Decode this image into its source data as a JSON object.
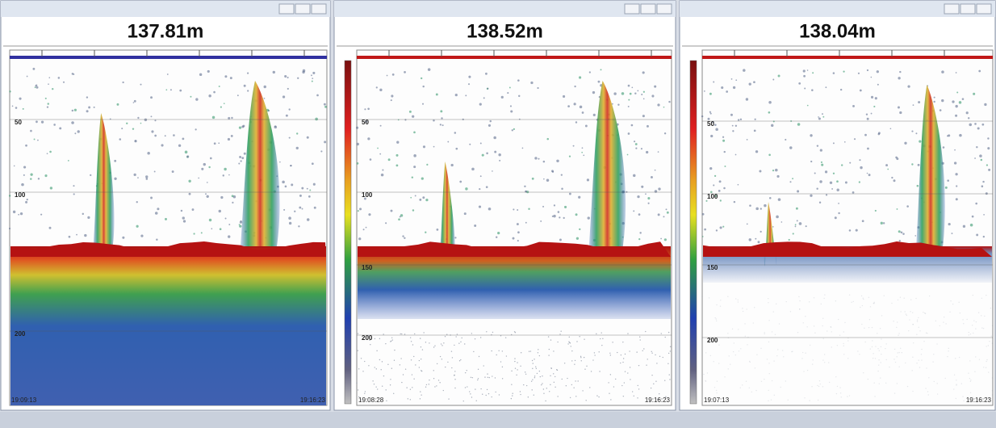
{
  "windows": [
    {
      "heading": "137.81m",
      "depth_labels": [
        "50",
        "100",
        "200"
      ],
      "start_time": "19:09:13",
      "end_time": "19:16:23"
    },
    {
      "heading": "138.52m",
      "depth_labels": [
        "50",
        "100",
        "150",
        "200"
      ],
      "start_time": "19:08:28",
      "end_time": "19:16:23"
    },
    {
      "heading": "138.04m",
      "depth_labels": [
        "50",
        "100",
        "150",
        "200"
      ],
      "start_time": "19:07:13",
      "end_time": "19:16:23"
    }
  ]
}
